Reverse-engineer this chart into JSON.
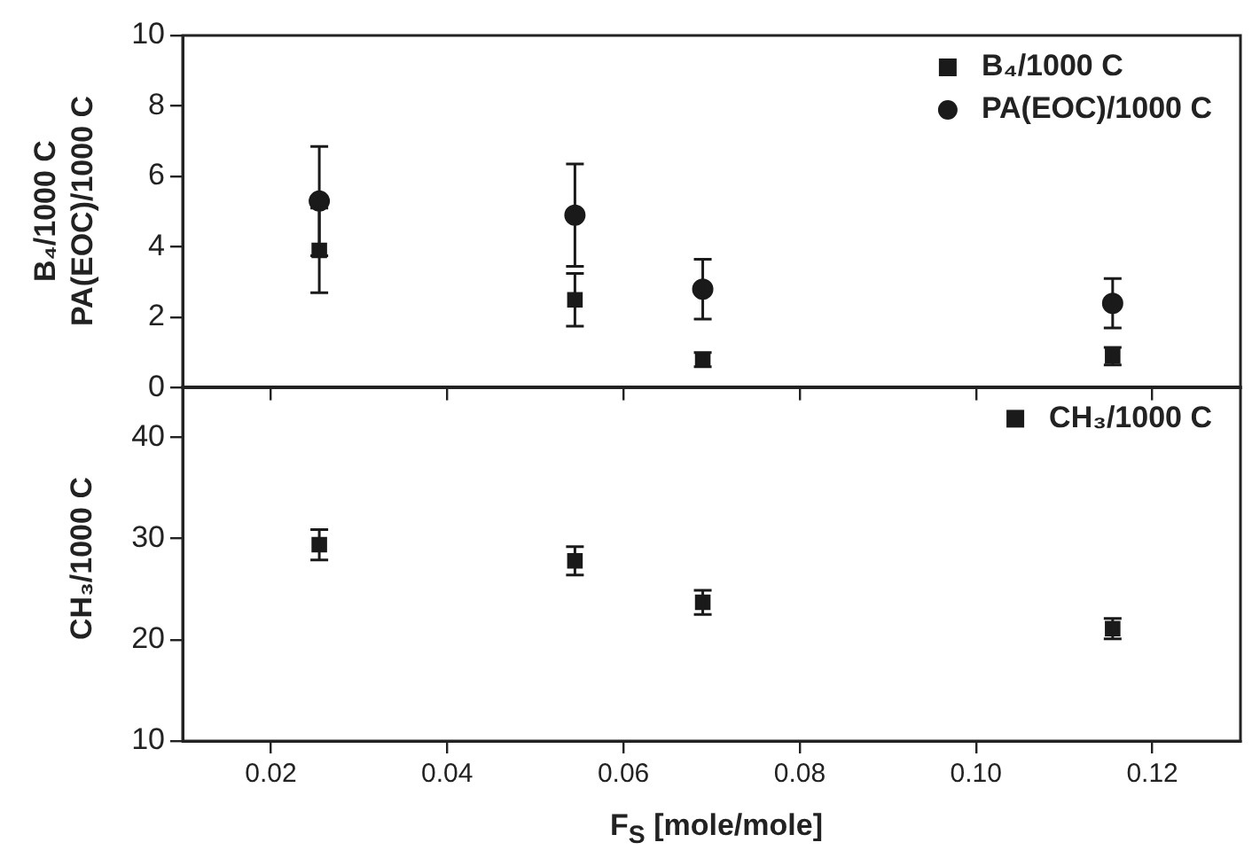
{
  "chart_data": [
    {
      "type": "scatter",
      "ylabel": "B₄/1000 C\nPA(EOC)/1000 C",
      "x": [
        0.0255,
        0.0545,
        0.069,
        0.1155
      ],
      "xlim": [
        0.01,
        0.13
      ],
      "xticks": [
        0.02,
        0.04,
        0.06,
        0.08,
        0.1,
        0.12
      ],
      "ylim": [
        0,
        10
      ],
      "yticks": [
        0,
        2,
        4,
        6,
        8,
        10
      ],
      "tick_labels": "y",
      "grid": false,
      "legend": "top right",
      "series": [
        {
          "name": "B₄/1000 C",
          "color": "#1a1a1a",
          "marker": "square",
          "values": [
            3.9,
            2.5,
            0.8,
            0.9
          ],
          "errors": [
            1.2,
            0.75,
            0.2,
            0.25
          ]
        },
        {
          "name": "PA(EOC)/1000 C",
          "color": "#1a1a1a",
          "marker": "circle",
          "values": [
            5.3,
            4.9,
            2.8,
            2.4
          ],
          "errors": [
            1.55,
            1.45,
            0.85,
            0.7
          ]
        }
      ]
    },
    {
      "type": "scatter",
      "xlabel": "F$_{S}$ [mole/mole]",
      "ylabel": "CH₃/1000 C",
      "x": [
        0.0255,
        0.0545,
        0.069,
        0.1155
      ],
      "xlim": [
        0.01,
        0.13
      ],
      "xticks": [
        0.02,
        0.04,
        0.06,
        0.08,
        {
          "value": 0.1,
          "label": "0.10"
        },
        0.12
      ],
      "ylim": [
        10,
        45
      ],
      "yticks": [
        10,
        20,
        30,
        40
      ],
      "grid": false,
      "legend": "top right",
      "series": [
        {
          "name": "CH₃/1000 C",
          "color": "#1a1a1a",
          "marker": "square",
          "values": [
            29.4,
            27.8,
            23.7,
            21.1
          ],
          "errors": [
            1.5,
            1.4,
            1.2,
            1.0
          ]
        }
      ]
    }
  ]
}
